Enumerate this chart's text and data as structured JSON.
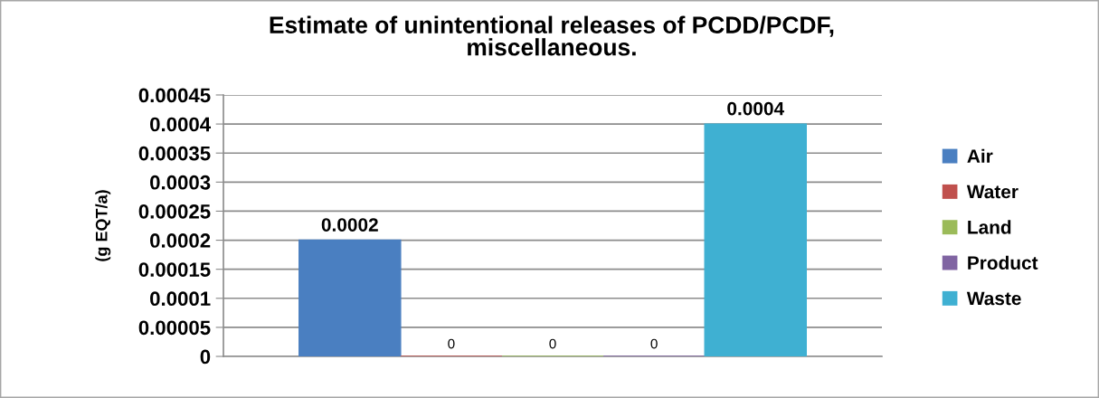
{
  "chart_data": {
    "type": "bar",
    "title": "Estimate of unintentional releases of PCDD/PCDF,\nmiscellaneous.",
    "ylabel": "(g EQT/a)",
    "categories": [
      null
    ],
    "series": [
      {
        "name": "Air",
        "color": "#4a7fc1",
        "values": [
          0.0002
        ]
      },
      {
        "name": "Water",
        "color": "#c0504d",
        "values": [
          0
        ]
      },
      {
        "name": "Land",
        "color": "#9bbb59",
        "values": [
          0
        ]
      },
      {
        "name": "Product",
        "color": "#8064a2",
        "values": [
          0
        ]
      },
      {
        "name": "Waste",
        "color": "#3fb0d2",
        "values": [
          0.0004
        ]
      }
    ],
    "ylim": [
      0,
      0.00045
    ],
    "yticks": [
      0,
      {
        "value": 5e-05,
        "label": "0.00005"
      },
      0.0001,
      0.00015,
      0.0002,
      0.00025,
      0.0003,
      0.00035,
      0.0004,
      0.00045
    ],
    "grid": "y",
    "legend": "right",
    "data_labels": true,
    "tick_labels": "y"
  }
}
